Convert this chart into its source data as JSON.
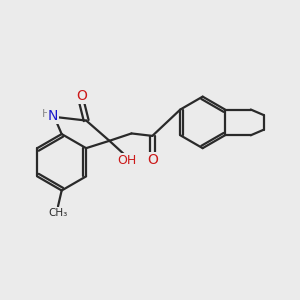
{
  "bg_color": "#ebebeb",
  "bond_color": "#2a2a2a",
  "bond_width": 1.6,
  "N_color": "#1a1acc",
  "O_color": "#cc1a1a",
  "figsize": [
    3.0,
    3.0
  ],
  "dpi": 100,
  "xlim": [
    0,
    12
  ],
  "ylim": [
    0,
    10
  ]
}
